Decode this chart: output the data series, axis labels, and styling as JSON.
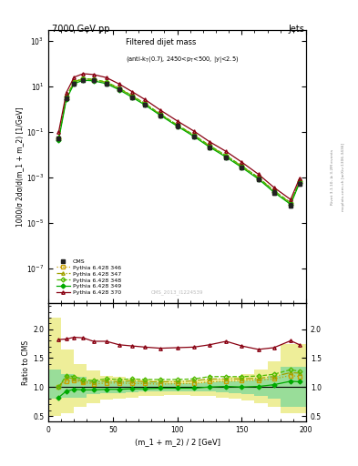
{
  "title_left": "7000 GeV pp",
  "title_right": "Jets",
  "watermark": "CMS_2013_I1224539",
  "ylabel_main": "1000/σ 2dσ/d(m_1 + m_2) [1/GeV]",
  "ylabel_ratio": "Ratio to CMS",
  "xlabel": "(m_1 + m_2) / 2 [GeV]",
  "xlim": [
    0,
    200
  ],
  "ylim_main": [
    3e-09,
    3000.0
  ],
  "ylim_ratio": [
    0.4,
    2.45
  ],
  "right_label1": "Rivet 3.1.10, ≥ 3.2M events",
  "right_label2": "mcplots.cern.ch [arXiv:1306.3436]",
  "cms_x": [
    8,
    14,
    20,
    27,
    35,
    45,
    55,
    65,
    75,
    87,
    100,
    113,
    125,
    138,
    150,
    163,
    175,
    188,
    195
  ],
  "cms_y": [
    0.055,
    3.0,
    14.0,
    20.0,
    19.0,
    14.0,
    7.5,
    3.5,
    1.6,
    0.55,
    0.185,
    0.065,
    0.022,
    0.0078,
    0.0028,
    0.00085,
    0.00022,
    6e-05,
    0.00055
  ],
  "cms_yerr_lo": [
    0.01,
    0.5,
    2.5,
    3.5,
    3.2,
    2.4,
    1.3,
    0.6,
    0.28,
    0.1,
    0.034,
    0.012,
    0.004,
    0.0014,
    0.0005,
    0.00016,
    4.5e-05,
    1.3e-05,
    0.0001
  ],
  "cms_yerr_hi": [
    0.01,
    0.5,
    2.5,
    3.5,
    3.2,
    2.4,
    1.3,
    0.6,
    0.28,
    0.1,
    0.034,
    0.012,
    0.004,
    0.0014,
    0.0005,
    0.00016,
    4.5e-05,
    1.3e-05,
    0.0001
  ],
  "p346_x": [
    8,
    14,
    20,
    27,
    35,
    45,
    55,
    65,
    75,
    87,
    100,
    113,
    125,
    138,
    150,
    163,
    175,
    188,
    195
  ],
  "p346_y": [
    0.055,
    3.3,
    15.5,
    21.5,
    20.0,
    15.0,
    8.0,
    3.7,
    1.7,
    0.58,
    0.196,
    0.069,
    0.024,
    0.0086,
    0.0031,
    0.00095,
    0.00025,
    7.2e-05,
    0.00065
  ],
  "p347_x": [
    8,
    14,
    20,
    27,
    35,
    45,
    55,
    65,
    75,
    87,
    100,
    113,
    125,
    138,
    150,
    163,
    175,
    188,
    195
  ],
  "p347_y": [
    0.055,
    3.5,
    16.0,
    22.0,
    20.5,
    15.5,
    8.2,
    3.9,
    1.75,
    0.6,
    0.202,
    0.072,
    0.025,
    0.0089,
    0.0032,
    0.00098,
    0.00026,
    7.5e-05,
    0.00068
  ],
  "p348_x": [
    8,
    14,
    20,
    27,
    35,
    45,
    55,
    65,
    75,
    87,
    100,
    113,
    125,
    138,
    150,
    163,
    175,
    188,
    195
  ],
  "p348_y": [
    0.055,
    3.6,
    16.5,
    22.5,
    21.0,
    16.0,
    8.5,
    4.0,
    1.8,
    0.62,
    0.208,
    0.074,
    0.026,
    0.0092,
    0.0033,
    0.00101,
    0.000268,
    7.8e-05,
    0.0007
  ],
  "p349_x": [
    8,
    14,
    20,
    27,
    35,
    45,
    55,
    65,
    75,
    87,
    100,
    113,
    125,
    138,
    150,
    163,
    175,
    188,
    195
  ],
  "p349_y": [
    0.045,
    2.8,
    13.5,
    19.0,
    18.0,
    13.5,
    7.2,
    3.4,
    1.55,
    0.54,
    0.182,
    0.064,
    0.022,
    0.0079,
    0.0028,
    0.00086,
    0.000228,
    6.6e-05,
    0.0006
  ],
  "p370_x": [
    8,
    14,
    20,
    27,
    35,
    45,
    55,
    65,
    75,
    87,
    100,
    113,
    125,
    138,
    150,
    163,
    175,
    188,
    195
  ],
  "p370_y": [
    0.1,
    5.5,
    26.0,
    37.0,
    34.0,
    25.0,
    13.0,
    6.0,
    2.7,
    0.92,
    0.31,
    0.11,
    0.038,
    0.014,
    0.0048,
    0.0014,
    0.00037,
    0.000108,
    0.00095
  ],
  "ratio346_y": [
    1.0,
    1.1,
    1.11,
    1.08,
    1.05,
    1.07,
    1.07,
    1.06,
    1.06,
    1.05,
    1.06,
    1.06,
    1.09,
    1.1,
    1.11,
    1.12,
    1.14,
    1.2,
    1.18
  ],
  "ratio347_y": [
    1.0,
    1.17,
    1.14,
    1.1,
    1.08,
    1.11,
    1.09,
    1.11,
    1.09,
    1.09,
    1.09,
    1.11,
    1.14,
    1.14,
    1.14,
    1.15,
    1.18,
    1.25,
    1.24
  ],
  "ratio348_y": [
    1.0,
    1.2,
    1.18,
    1.13,
    1.11,
    1.14,
    1.13,
    1.14,
    1.13,
    1.13,
    1.13,
    1.14,
    1.18,
    1.18,
    1.18,
    1.19,
    1.22,
    1.3,
    1.27
  ],
  "ratio349_y": [
    0.82,
    0.93,
    0.96,
    0.95,
    0.95,
    0.96,
    0.96,
    0.97,
    0.97,
    0.98,
    0.98,
    0.98,
    1.0,
    1.01,
    1.0,
    1.01,
    1.04,
    1.1,
    1.09
  ],
  "ratio370_y": [
    1.82,
    1.83,
    1.86,
    1.85,
    1.79,
    1.79,
    1.73,
    1.71,
    1.69,
    1.67,
    1.68,
    1.69,
    1.73,
    1.79,
    1.71,
    1.65,
    1.68,
    1.8,
    1.73
  ],
  "band_edges": [
    0,
    10,
    20,
    30,
    40,
    50,
    60,
    70,
    80,
    90,
    100,
    110,
    120,
    130,
    140,
    150,
    160,
    170,
    180,
    200
  ],
  "band_hi_green": [
    1.3,
    1.22,
    1.18,
    1.12,
    1.1,
    1.1,
    1.09,
    1.08,
    1.08,
    1.07,
    1.07,
    1.07,
    1.08,
    1.09,
    1.1,
    1.12,
    1.15,
    1.2,
    1.35,
    1.35
  ],
  "band_lo_green": [
    0.8,
    0.82,
    0.82,
    0.88,
    0.9,
    0.9,
    0.91,
    0.92,
    0.92,
    0.93,
    0.93,
    0.93,
    0.92,
    0.91,
    0.9,
    0.88,
    0.85,
    0.8,
    0.65,
    0.65
  ],
  "band_hi_yellow": [
    2.2,
    1.65,
    1.4,
    1.28,
    1.2,
    1.18,
    1.15,
    1.13,
    1.12,
    1.11,
    1.11,
    1.12,
    1.13,
    1.15,
    1.18,
    1.22,
    1.3,
    1.45,
    1.75,
    1.75
  ],
  "band_lo_yellow": [
    0.5,
    0.55,
    0.65,
    0.72,
    0.78,
    0.8,
    0.82,
    0.84,
    0.85,
    0.86,
    0.86,
    0.85,
    0.84,
    0.82,
    0.8,
    0.77,
    0.72,
    0.65,
    0.55,
    0.55
  ],
  "color_cms": "#222222",
  "color_346": "#c8a000",
  "color_347": "#a0a000",
  "color_348": "#50bb00",
  "color_349": "#00aa00",
  "color_370": "#880011",
  "color_band_green": "#99dd99",
  "color_band_yellow": "#eeee99"
}
